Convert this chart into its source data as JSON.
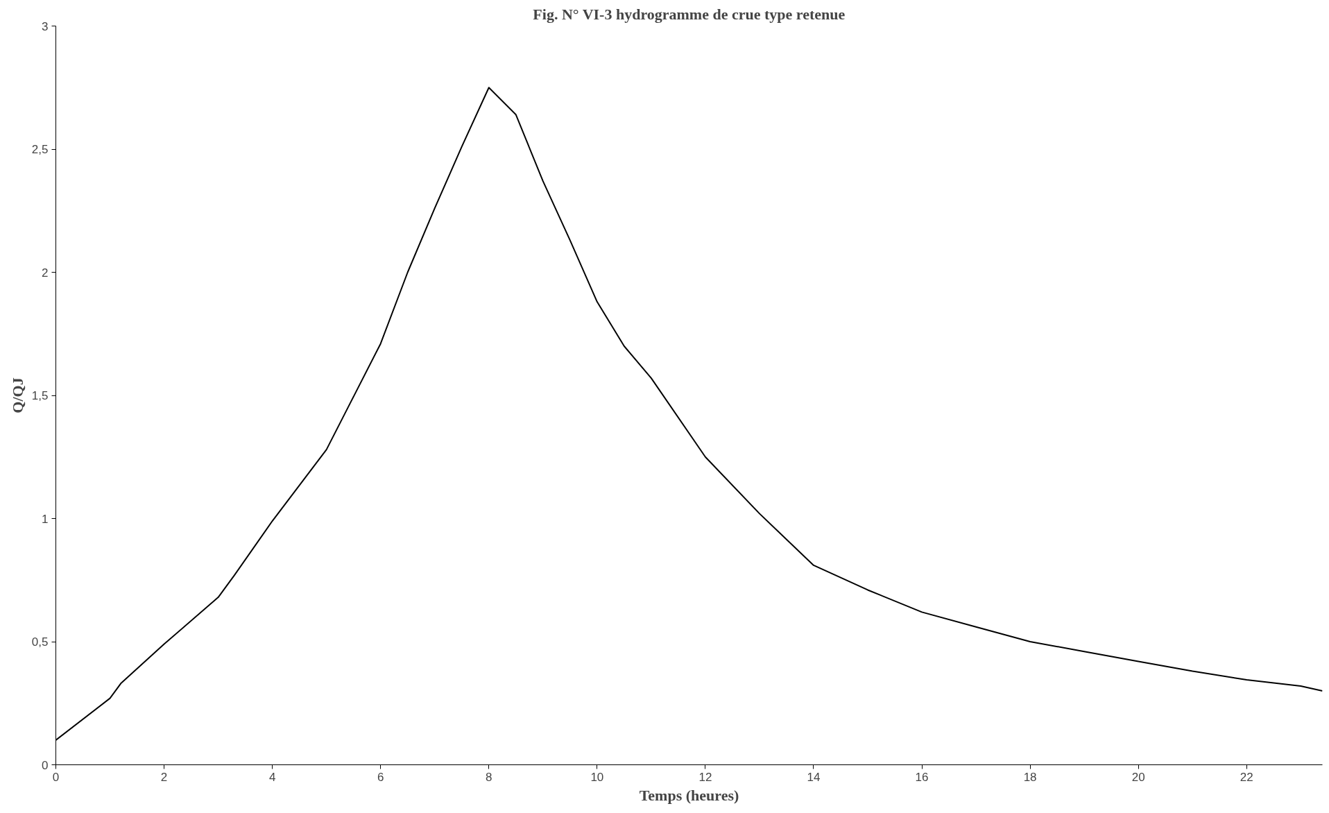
{
  "chart_data": {
    "type": "line",
    "title": "Fig. N° VI-3 hydrogramme de crue type retenue",
    "xlabel": "Temps (heures)",
    "ylabel": "Q/QJ",
    "x": [
      0,
      1,
      1.2,
      2,
      3,
      3.3,
      4,
      5,
      6,
      6.5,
      7,
      7.5,
      8,
      8.5,
      9,
      9.5,
      10,
      10.5,
      11,
      12,
      13,
      14,
      15,
      16,
      17,
      18,
      19,
      20,
      21,
      22,
      23,
      23.4
    ],
    "series": [
      {
        "color": "#000000",
        "values": [
          0.1,
          0.27,
          0.33,
          0.49,
          0.68,
          0.77,
          0.99,
          1.28,
          1.71,
          2.0,
          2.26,
          2.51,
          2.75,
          2.64,
          2.37,
          2.13,
          1.88,
          1.7,
          1.57,
          1.25,
          1.02,
          0.81,
          0.71,
          0.62,
          0.56,
          0.5,
          0.46,
          0.42,
          0.38,
          0.345,
          0.32,
          0.3
        ]
      }
    ],
    "xlim": [
      0,
      23.4
    ],
    "ylim": [
      0,
      3
    ],
    "xticks": [
      0,
      2,
      4,
      6,
      8,
      10,
      12,
      14,
      16,
      18,
      20,
      22
    ],
    "yticks": [
      0,
      {
        "value": 0.5,
        "label": "0,5"
      },
      1,
      {
        "value": 1.5,
        "label": "1,5"
      },
      2,
      {
        "value": 2.5,
        "label": "2,5"
      },
      3
    ],
    "grid": false,
    "marker": "none",
    "line_style": "solid"
  }
}
